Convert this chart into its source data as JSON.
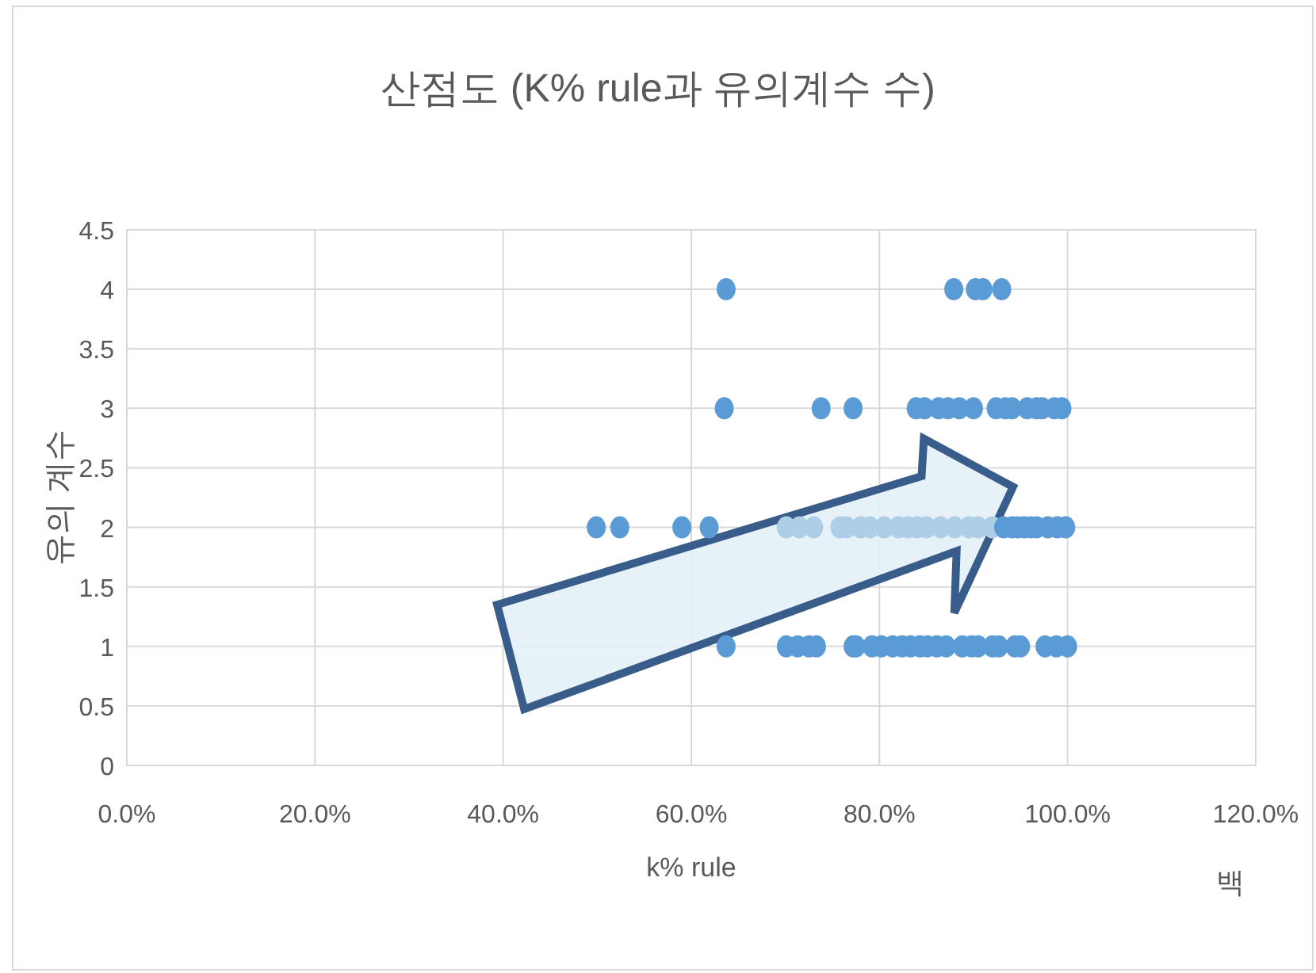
{
  "chart_data": {
    "type": "scatter",
    "title": "산점도 (K% rule과 유의계수 수)",
    "xlabel": "k% rule",
    "ylabel": "유의 계수",
    "annotations": [
      "백"
    ],
    "xlim": [
      0,
      1.2
    ],
    "xticks": [
      {
        "value": 0,
        "label": "0.0%"
      },
      {
        "value": 0.2,
        "label": "20.0%"
      },
      {
        "value": 0.4,
        "label": "40.0%"
      },
      {
        "value": 0.6,
        "label": "60.0%"
      },
      {
        "value": 0.8,
        "label": "80.0%"
      },
      {
        "value": 1.0,
        "label": "100.0%"
      },
      {
        "value": 1.2,
        "label": "120.0%"
      }
    ],
    "ylim": [
      0,
      4.5
    ],
    "yticks": [
      0,
      0.5,
      1,
      1.5,
      2,
      2.5,
      3,
      3.5,
      4,
      {
        "value": 4.5,
        "label": "4.5"
      }
    ],
    "grid": true,
    "marker": "circle",
    "series": [
      {
        "color": "#aecde6",
        "x": [
          0.701,
          0.715,
          0.73,
          0.758,
          0.765,
          0.78,
          0.79,
          0.805,
          0.82,
          0.83,
          0.84,
          0.85,
          0.865,
          0.88,
          0.895,
          0.905,
          0.92
        ],
        "values": [
          2,
          2,
          2,
          2,
          2,
          2,
          2,
          2,
          2,
          2,
          2,
          2,
          2,
          2,
          2,
          2,
          2
        ]
      },
      {
        "color": "#5b9bd5",
        "x": [
          0.637,
          0.879,
          0.902,
          0.91,
          0.93,
          0.635,
          0.738,
          0.772,
          0.839,
          0.848,
          0.863,
          0.873,
          0.885,
          0.9,
          0.924,
          0.934,
          0.941,
          0.957,
          0.967,
          0.973,
          0.986,
          0.994,
          0.499,
          0.524,
          0.59,
          0.619,
          0.932,
          0.941,
          0.947,
          0.954,
          0.961,
          0.967,
          0.979,
          0.989,
          0.998,
          0.637,
          0.701,
          0.713,
          0.725,
          0.733,
          0.772,
          0.775,
          0.792,
          0.802,
          0.814,
          0.824,
          0.833,
          0.843,
          0.851,
          0.861,
          0.871,
          0.888,
          0.898,
          0.905,
          0.92,
          0.927,
          0.944,
          0.95,
          0.976,
          0.988,
          1.0
        ],
        "values": [
          4,
          4,
          4,
          4,
          4,
          3,
          3,
          3,
          3,
          3,
          3,
          3,
          3,
          3,
          3,
          3,
          3,
          3,
          3,
          3,
          3,
          3,
          2,
          2,
          2,
          2,
          2,
          2,
          2,
          2,
          2,
          2,
          2,
          2,
          2,
          1,
          1,
          1,
          1,
          1,
          1,
          1,
          1,
          1,
          1,
          1,
          1,
          1,
          1,
          1,
          1,
          1,
          1,
          1,
          1,
          1,
          1,
          1,
          1,
          1,
          1
        ]
      }
    ]
  }
}
